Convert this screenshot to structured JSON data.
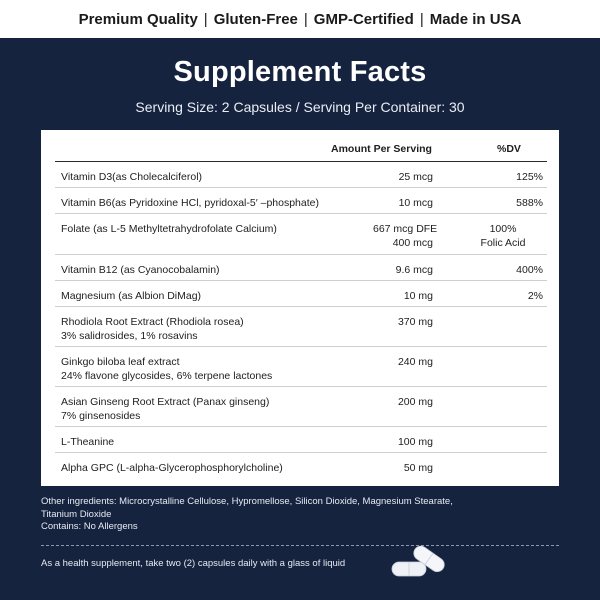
{
  "badges": [
    "Premium Quality",
    "Gluten-Free",
    "GMP-Certified",
    "Made in USA"
  ],
  "separator": "|",
  "title": "Supplement Facts",
  "serving": "Serving Size: 2 Capsules / Serving Per Container: 30",
  "table": {
    "headers": {
      "amount": "Amount Per Serving",
      "dv": "%DV"
    },
    "rows": [
      {
        "name": [
          "Vitamin D3(as Cholecalciferol)"
        ],
        "amount": [
          "25 mcg"
        ],
        "dv": [
          "125%"
        ]
      },
      {
        "name": [
          "Vitamin B6(as Pyridoxine HCl, pyridoxal-5′ –phosphate)"
        ],
        "amount": [
          "10 mcg"
        ],
        "dv": [
          "588%"
        ]
      },
      {
        "name": [
          "Folate (as L-5 Methyltetrahydrofolate Calcium)"
        ],
        "amount": [
          "667 mcg DFE",
          "400 mcg"
        ],
        "dv": [
          "100%",
          "Folic Acid"
        ]
      },
      {
        "name": [
          "Vitamin B12 (as Cyanocobalamin)"
        ],
        "amount": [
          "9.6 mcg"
        ],
        "dv": [
          "400%"
        ]
      },
      {
        "name": [
          "Magnesium (as Albion DiMag)"
        ],
        "amount": [
          "10 mg"
        ],
        "dv": [
          "2%"
        ]
      },
      {
        "name": [
          "Rhodiola Root Extract (Rhodiola rosea)",
          "3% salidrosides, 1% rosavins"
        ],
        "amount": [
          "370 mg"
        ],
        "dv": [
          ""
        ]
      },
      {
        "name": [
          "Ginkgo biloba leaf extract",
          "24% flavone glycosides, 6% terpene lactones"
        ],
        "amount": [
          "240 mg"
        ],
        "dv": [
          ""
        ]
      },
      {
        "name": [
          "Asian Ginseng Root Extract (Panax ginseng)",
          "7% ginsenosides"
        ],
        "amount": [
          "200 mg"
        ],
        "dv": [
          ""
        ]
      },
      {
        "name": [
          "L-Theanine"
        ],
        "amount": [
          "100 mg"
        ],
        "dv": [
          ""
        ]
      },
      {
        "name": [
          "Alpha GPC (L-alpha-Glycerophosphorylcholine)"
        ],
        "amount": [
          "50  mg"
        ],
        "dv": [
          ""
        ]
      }
    ]
  },
  "other_ingredients_1": "Other ingredients: Microcrystalline Cellulose, Hypromellose, Silicon Dioxide,  Magnesium Stearate,",
  "other_ingredients_2": "Titanium Dioxide",
  "allergens": "Contains: No Allergens",
  "usage": "As a health supplement, take two (2) capsules daily with a glass of liquid",
  "colors": {
    "panel": "#16233f",
    "card": "#ffffff",
    "text_dark": "#1e1e1e",
    "text_light": "#e6eaf2"
  },
  "icons": {
    "capsules": "capsule-pills-icon"
  }
}
